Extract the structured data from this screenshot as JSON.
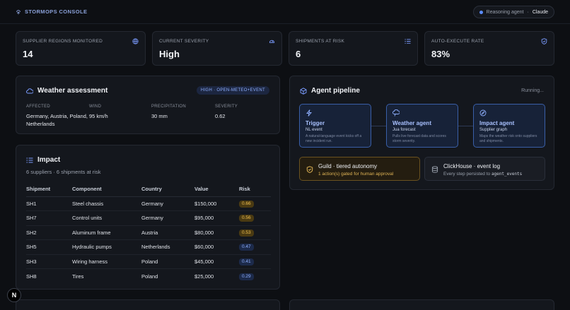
{
  "header": {
    "brand": "STORMOPS CONSOLE",
    "agent_label": "Reasoning agent",
    "agent_sep": "·",
    "agent_model": "Claude"
  },
  "stats": [
    {
      "label": "SUPPLIER REGIONS MONITORED",
      "value": "14",
      "icon": "globe-icon"
    },
    {
      "label": "CURRENT SEVERITY",
      "value": "High",
      "icon": "gauge-icon"
    },
    {
      "label": "SHIPMENTS AT RISK",
      "value": "6",
      "icon": "list-icon"
    },
    {
      "label": "AUTO-EXECUTE RATE",
      "value": "83%",
      "icon": "shield-check-icon"
    }
  ],
  "weather": {
    "title": "Weather assessment",
    "tag": "HIGH · OPEN-METEO+EVENT",
    "affected_label": "AFFECTED",
    "affected_value": "Germany, Austria, Poland, Netherlands",
    "wind_label": "WIND",
    "wind_value": "95 km/h",
    "precip_label": "PRECIPITATION",
    "precip_value": "30 mm",
    "severity_label": "SEVERITY",
    "severity_value": "0.62"
  },
  "impact": {
    "title": "Impact",
    "subtitle": "6 suppliers · 6 shipments at risk",
    "columns": [
      "Shipment",
      "Component",
      "Country",
      "Value",
      "Risk"
    ],
    "rows": [
      {
        "shipment": "SH1",
        "component": "Steel chassis",
        "country": "Germany",
        "value": "$150,000",
        "risk": "0.66",
        "level": "high"
      },
      {
        "shipment": "SH7",
        "component": "Control units",
        "country": "Germany",
        "value": "$95,000",
        "risk": "0.56",
        "level": "high"
      },
      {
        "shipment": "SH2",
        "component": "Aluminum frame",
        "country": "Austria",
        "value": "$80,000",
        "risk": "0.53",
        "level": "high"
      },
      {
        "shipment": "SH5",
        "component": "Hydraulic pumps",
        "country": "Netherlands",
        "value": "$60,000",
        "risk": "0.47",
        "level": "med"
      },
      {
        "shipment": "SH3",
        "component": "Wiring harness",
        "country": "Poland",
        "value": "$45,000",
        "risk": "0.41",
        "level": "med"
      },
      {
        "shipment": "SH8",
        "component": "Tires",
        "country": "Poland",
        "value": "$25,000",
        "risk": "0.29",
        "level": "med"
      }
    ]
  },
  "pipeline": {
    "title": "Agent pipeline",
    "status": "Running...",
    "steps": [
      {
        "title": "Trigger",
        "subtitle": "NL event",
        "desc": "A natural-language event kicks off a new incident run.",
        "icon": "bolt-icon"
      },
      {
        "title": "Weather agent",
        "subtitle": "Jua forecast",
        "desc": "Pulls live forecast data and scores storm severity.",
        "icon": "cloud-icon"
      },
      {
        "title": "Impact agent",
        "subtitle": "Supplier graph",
        "desc": "Maps the weather risk onto suppliers and shipments.",
        "icon": "compass-icon"
      }
    ],
    "guild_title": "Guild · tiered autonomy",
    "guild_subtitle": "1 action(s) gated for human approval",
    "clickhouse_title": "ClickHouse · event log",
    "clickhouse_subtitle": "Every step persisted to",
    "clickhouse_table": "agent_events"
  },
  "colors": {
    "accent": "#5b8cff",
    "risk_high_bg": "#4a3a12",
    "risk_high_fg": "#f0c050",
    "risk_med_bg": "#1c2a4a",
    "risk_med_fg": "#8fb0ff"
  },
  "nextjs_badge": "N"
}
